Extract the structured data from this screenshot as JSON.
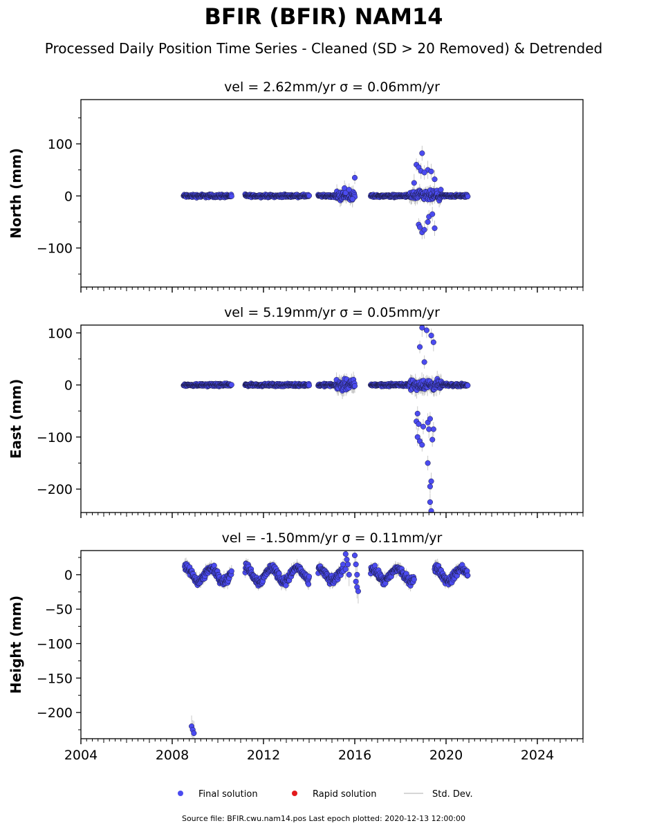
{
  "title": "BFIR (BFIR) NAM14",
  "subtitle": "Processed Daily Position Time Series - Cleaned (SD > 20 Removed) & Detrended",
  "footer": "Source file: BFIR.cwu.nam14.pos  Last epoch plotted: 2020-12-13 12:00:00",
  "colors": {
    "final": "#4b4bf0",
    "rapid": "#e31a1c",
    "stddev": "#c8c8c8",
    "edge": "#1a1a40"
  },
  "chart_data": [
    {
      "type": "scatter",
      "title": "vel = 2.62mm/yr   σ = 0.06mm/yr",
      "ylabel": "North (mm)",
      "xlim": [
        2004,
        2026
      ],
      "ylim": [
        -175,
        185
      ],
      "yticks": [
        -100,
        0,
        100
      ],
      "yticklabels": [
        "−100",
        "0",
        "100"
      ],
      "series": [
        {
          "name": "Final solution",
          "segments": [
            {
              "x_start": 2008.5,
              "x_end": 2010.6,
              "spread": 2.5,
              "sd": 3
            },
            {
              "x_start": 2011.2,
              "x_end": 2014.0,
              "spread": 2,
              "sd": 3
            },
            {
              "x_start": 2014.4,
              "x_end": 2015.2,
              "spread": 2,
              "sd": 3
            },
            {
              "x_start": 2015.2,
              "x_end": 2016.0,
              "spread": 7,
              "sd": 10
            },
            {
              "x_start": 2016.7,
              "x_end": 2018.4,
              "spread": 2,
              "sd": 3
            },
            {
              "x_start": 2018.4,
              "x_end": 2019.8,
              "spread": 8,
              "sd": 10
            },
            {
              "x_start": 2019.8,
              "x_end": 2020.95,
              "spread": 2,
              "sd": 3
            }
          ],
          "outliers": [
            [
              2015.55,
              15
            ],
            [
              2015.6,
              6
            ],
            [
              2015.75,
              12
            ],
            [
              2015.9,
              -6
            ],
            [
              2016.0,
              35
            ],
            [
              2018.6,
              25
            ],
            [
              2018.7,
              60
            ],
            [
              2018.8,
              55
            ],
            [
              2018.9,
              48
            ],
            [
              2018.95,
              82
            ],
            [
              2019.2,
              50
            ],
            [
              2019.35,
              47
            ],
            [
              2019.05,
              45
            ],
            [
              2019.5,
              32
            ],
            [
              2018.8,
              -55
            ],
            [
              2018.85,
              -60
            ],
            [
              2018.95,
              -70
            ],
            [
              2019.05,
              -65
            ],
            [
              2019.25,
              -40
            ],
            [
              2019.4,
              -35
            ],
            [
              2019.5,
              -62
            ],
            [
              2019.2,
              -50
            ]
          ]
        }
      ]
    },
    {
      "type": "scatter",
      "title": "vel = 5.19mm/yr   σ = 0.05mm/yr",
      "ylabel": "East (mm)",
      "xlim": [
        2004,
        2026
      ],
      "ylim": [
        -245,
        115
      ],
      "yticks": [
        -200,
        -100,
        0,
        100
      ],
      "yticklabels": [
        "−200",
        "−100",
        "0",
        "100"
      ],
      "series": [
        {
          "name": "Final solution",
          "segments": [
            {
              "x_start": 2008.5,
              "x_end": 2010.6,
              "spread": 2,
              "sd": 3
            },
            {
              "x_start": 2011.2,
              "x_end": 2014.0,
              "spread": 2,
              "sd": 3
            },
            {
              "x_start": 2014.4,
              "x_end": 2015.2,
              "spread": 2,
              "sd": 3
            },
            {
              "x_start": 2015.2,
              "x_end": 2016.0,
              "spread": 8,
              "sd": 12
            },
            {
              "x_start": 2016.7,
              "x_end": 2018.4,
              "spread": 2,
              "sd": 3
            },
            {
              "x_start": 2018.4,
              "x_end": 2019.8,
              "spread": 8,
              "sd": 12
            },
            {
              "x_start": 2019.8,
              "x_end": 2020.95,
              "spread": 2,
              "sd": 3
            }
          ],
          "outliers": [
            [
              2018.95,
              110
            ],
            [
              2019.15,
              105
            ],
            [
              2019.35,
              95
            ],
            [
              2019.45,
              82
            ],
            [
              2018.85,
              73
            ],
            [
              2019.05,
              44
            ],
            [
              2018.75,
              -55
            ],
            [
              2018.7,
              -70
            ],
            [
              2018.8,
              -75
            ],
            [
              2018.75,
              -100
            ],
            [
              2018.85,
              -108
            ],
            [
              2018.95,
              -115
            ],
            [
              2019.0,
              -80
            ],
            [
              2019.2,
              -72
            ],
            [
              2019.3,
              -65
            ],
            [
              2019.25,
              -85
            ],
            [
              2019.45,
              -85
            ],
            [
              2019.4,
              -105
            ],
            [
              2019.2,
              -150
            ],
            [
              2019.35,
              -185
            ],
            [
              2019.3,
              -195
            ],
            [
              2019.3,
              -225
            ],
            [
              2019.35,
              -242
            ]
          ]
        }
      ]
    },
    {
      "type": "scatter",
      "title": "vel = -1.50mm/yr   σ = 0.11mm/yr",
      "ylabel": "Height (mm)",
      "xlim": [
        2004,
        2026
      ],
      "xticks": [
        2004,
        2008,
        2012,
        2016,
        2020,
        2024
      ],
      "xticklabels": [
        "2004",
        "2008",
        "2012",
        "2016",
        "2020",
        "2024"
      ],
      "ylim": [
        -238,
        35
      ],
      "yticks": [
        -200,
        -150,
        -100,
        -50,
        0
      ],
      "yticklabels": [
        "−200",
        "−150",
        "−100",
        "−50",
        "0"
      ],
      "series": [
        {
          "name": "Final solution",
          "segments": [
            {
              "x_start": 2008.55,
              "x_end": 2010.6,
              "spread": 5,
              "sd": 7,
              "season": 9
            },
            {
              "x_start": 2011.2,
              "x_end": 2014.0,
              "spread": 5,
              "sd": 7,
              "season": 10
            },
            {
              "x_start": 2014.4,
              "x_end": 2015.5,
              "spread": 5,
              "sd": 7,
              "season": 9
            },
            {
              "x_start": 2016.7,
              "x_end": 2018.6,
              "spread": 5,
              "sd": 7,
              "season": 9
            },
            {
              "x_start": 2019.5,
              "x_end": 2020.95,
              "spread": 5,
              "sd": 7,
              "season": 9
            }
          ],
          "outliers": [
            [
              2015.6,
              30
            ],
            [
              2015.65,
              22
            ],
            [
              2015.7,
              15
            ],
            [
              2015.6,
              8
            ],
            [
              2015.75,
              0
            ],
            [
              2016.0,
              28
            ],
            [
              2016.05,
              15
            ],
            [
              2016.1,
              0
            ],
            [
              2016.05,
              -10
            ],
            [
              2016.1,
              -18
            ],
            [
              2016.15,
              -24
            ],
            [
              2008.85,
              -220
            ],
            [
              2008.9,
              -225
            ],
            [
              2008.95,
              -230
            ]
          ]
        }
      ]
    }
  ],
  "legend": {
    "final": "Final solution",
    "rapid": "Rapid solution",
    "stddev": "Std. Dev."
  }
}
